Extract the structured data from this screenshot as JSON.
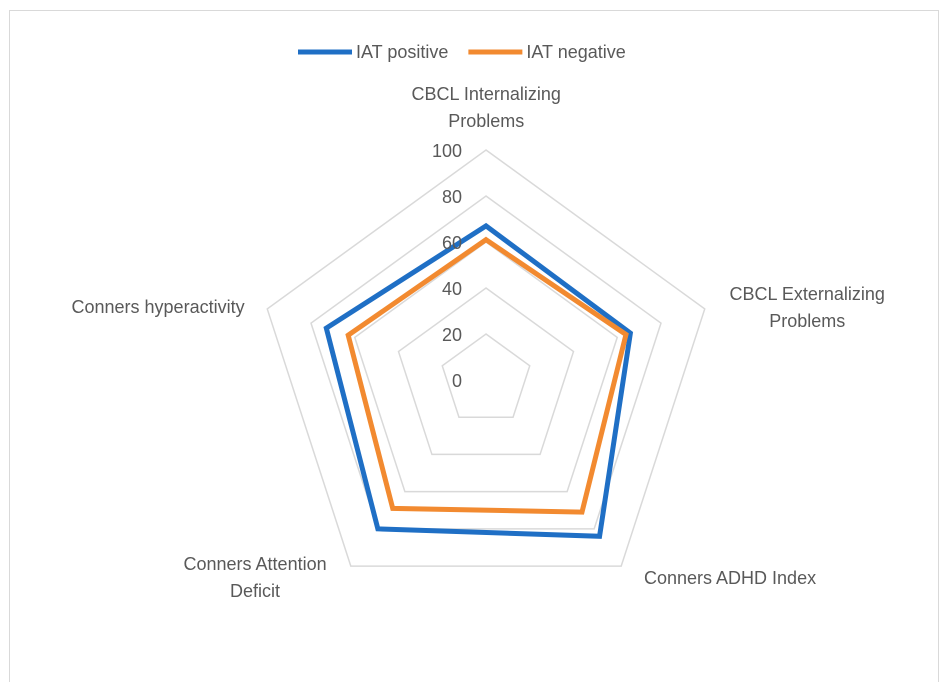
{
  "chart_data": {
    "type": "radar",
    "categories": [
      "CBCL Internalizing\nProblems",
      "CBCL Externalizing\nProblems",
      "Conners ADHD Index",
      "Conners Attention\nDeficit",
      "Conners hyperactivity"
    ],
    "series": [
      {
        "name": "IAT positive",
        "color": "#1f6fc5",
        "values": [
          67,
          66,
          84,
          80,
          73
        ]
      },
      {
        "name": "IAT negative",
        "color": "#f28a30",
        "values": [
          61,
          64,
          71,
          69,
          63
        ]
      }
    ],
    "rlim": [
      0,
      100
    ],
    "rticks": [
      0,
      20,
      40,
      60,
      80,
      100
    ],
    "grid": true,
    "legend": "top"
  }
}
